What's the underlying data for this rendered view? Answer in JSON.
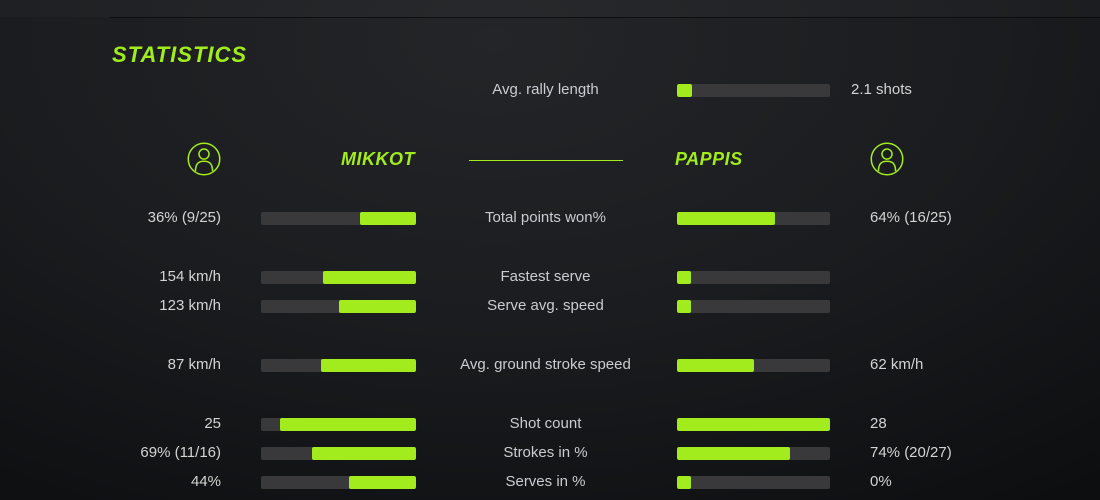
{
  "colors": {
    "accent": "#a2eb1c",
    "bar_track": "#39393b",
    "background": "#141619",
    "text": "#d4d4d4"
  },
  "title": "STATISTICS",
  "rally": {
    "label": "Avg. rally length",
    "value": "2.1 shots",
    "fill_pct": 10
  },
  "players": {
    "left": {
      "name": "MIKKOT"
    },
    "right": {
      "name": "PAPPIS"
    }
  },
  "rows": [
    {
      "label": "Total points won%",
      "left_value": "36% (9/25)",
      "left_fill_pct": 36,
      "right_value": "64% (16/25)",
      "right_fill_pct": 64
    },
    {
      "label": "Fastest serve",
      "left_value": "154 km/h",
      "left_fill_pct": 60,
      "right_value": "",
      "right_fill_pct": 9
    },
    {
      "label": "Serve avg. speed",
      "left_value": "123 km/h",
      "left_fill_pct": 50,
      "right_value": "",
      "right_fill_pct": 9
    },
    {
      "label": "Avg. ground stroke speed",
      "left_value": "87 km/h",
      "left_fill_pct": 61,
      "right_value": "62 km/h",
      "right_fill_pct": 50
    },
    {
      "label": "Shot count",
      "left_value": "25",
      "left_fill_pct": 88,
      "right_value": "28",
      "right_fill_pct": 100
    },
    {
      "label": "Strokes in %",
      "left_value": "69% (11/16)",
      "left_fill_pct": 67,
      "right_value": "74% (20/27)",
      "right_fill_pct": 74
    },
    {
      "label": "Serves in %",
      "left_value": "44%",
      "left_fill_pct": 43,
      "right_value": "0%",
      "right_fill_pct": 9
    }
  ]
}
